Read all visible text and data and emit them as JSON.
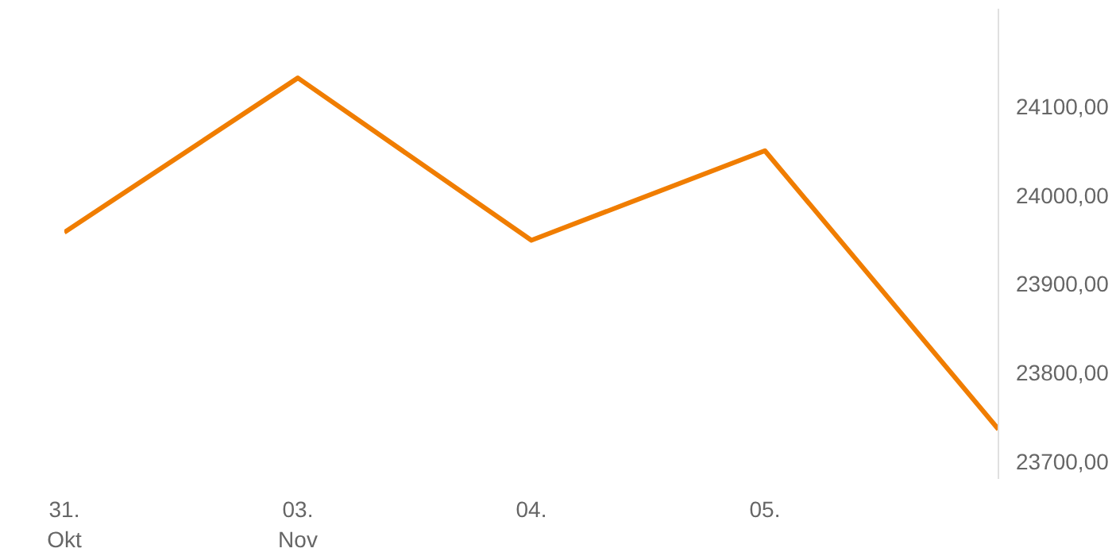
{
  "chart_data": {
    "type": "line",
    "categories": [
      "31.\nOkt",
      "03.\nNov",
      "04.",
      "05.",
      null
    ],
    "series": [
      {
        "color": "#f07d00",
        "values": [
          23958,
          24132,
          23949,
          24050,
          23736
        ]
      }
    ],
    "yticks": [
      {
        "value": 23700,
        "label": "23700,00"
      },
      {
        "value": 23800,
        "label": "23800,00"
      },
      {
        "value": 23900,
        "label": "23900,00"
      },
      {
        "value": 24000,
        "label": "24000,00"
      },
      {
        "value": 24100,
        "label": "24100,00"
      }
    ],
    "ylim": [
      23680,
      24210
    ],
    "grid": false,
    "marker": "none",
    "line_style": "solid"
  }
}
